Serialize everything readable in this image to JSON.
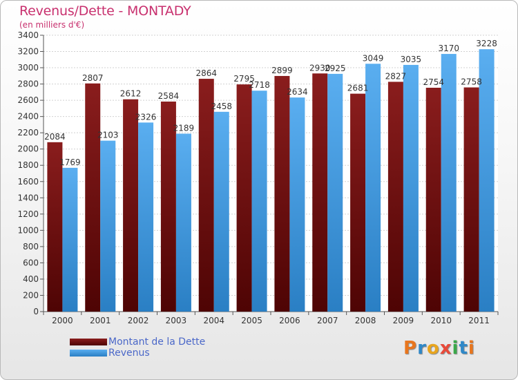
{
  "title": "Revenus/Dette - MONTADY",
  "subtitle": "(en milliers d'€)",
  "legend": {
    "series0": "Montant de la Dette",
    "series1": "Revenus"
  },
  "logo": {
    "text": "Proxiti",
    "letters": [
      {
        "ch": "P",
        "color": "#e8761e"
      },
      {
        "ch": "r",
        "color": "#2f88c8"
      },
      {
        "ch": "o",
        "color": "#e8a51e"
      },
      {
        "ch": "x",
        "color": "#e84a3a"
      },
      {
        "ch": "i",
        "color": "#3aa84a"
      },
      {
        "ch": "t",
        "color": "#2f88c8"
      },
      {
        "ch": "i",
        "color": "#e8761e"
      }
    ]
  },
  "colors": {
    "dette": "#6b0f0f",
    "revenus": "#4aa3e8",
    "title": "#c8306e"
  },
  "chart_data": {
    "type": "bar",
    "categories": [
      "2000",
      "2001",
      "2002",
      "2003",
      "2004",
      "2005",
      "2006",
      "2007",
      "2008",
      "2009",
      "2010",
      "2011"
    ],
    "series": [
      {
        "name": "Montant de la Dette",
        "values": [
          2084,
          2807,
          2612,
          2584,
          2864,
          2795,
          2899,
          2930,
          2681,
          2827,
          2754,
          2758
        ]
      },
      {
        "name": "Revenus",
        "values": [
          1769,
          2103,
          2326,
          2189,
          2458,
          2718,
          2634,
          2925,
          3049,
          3035,
          3170,
          3228
        ]
      }
    ],
    "ylim": [
      0,
      3400
    ],
    "yticks": [
      0,
      200,
      400,
      600,
      800,
      1000,
      1200,
      1400,
      1600,
      1800,
      2000,
      2200,
      2400,
      2600,
      2800,
      3000,
      3200,
      3400
    ],
    "grid": true,
    "legend_position": "bottom-left"
  }
}
